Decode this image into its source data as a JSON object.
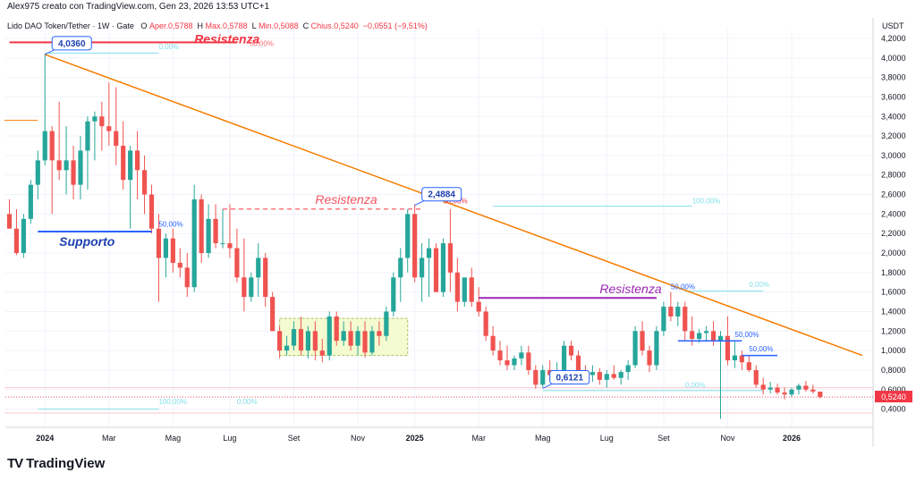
{
  "header": {
    "author_line": "Alex975 creato con TradingView.com, Gen 23, 2026 13:53 UTC+1"
  },
  "legend": {
    "symbol": "Lido DAO Token/Tether · 1W · Gate",
    "open_label": "O",
    "open": "Aper.0,5788",
    "high_label": "H",
    "high": "Max.0,5788",
    "low_label": "L",
    "low": "Min.0,5088",
    "close_label": "C",
    "close": "Chius.0,5240",
    "change": "−0,0551 (−9,51%)"
  },
  "currency": "USDT",
  "brand": {
    "logo": "TV",
    "name": "TradingView"
  },
  "colors": {
    "up": "#26a69a",
    "down": "#ef5350",
    "trend": "#f57c00",
    "support": "#2962ff",
    "resistance_red": "#f23645",
    "resistance_purple": "#9c27b0",
    "fib_cyan": "#80deea",
    "price_tag": "#f23645"
  },
  "chart_data": {
    "type": "candlestick",
    "title": "Lido DAO Token/Tether · 1W · Gate",
    "ylim": [
      0.25,
      4.3
    ],
    "y_ticks": [
      "4,2000",
      "4,0000",
      "3,8000",
      "3,6000",
      "3,4000",
      "3,2000",
      "3,0000",
      "2,8000",
      "2,6000",
      "2,4000",
      "2,2000",
      "2,0000",
      "1,8000",
      "1,6000",
      "1,4000",
      "1,2000",
      "1,0000",
      "0,8000",
      "0,6000",
      "0,4000"
    ],
    "y_tick_values": [
      4.2,
      4.0,
      3.8,
      3.6,
      3.4,
      3.2,
      3.0,
      2.8,
      2.6,
      2.4,
      2.2,
      2.0,
      1.8,
      1.6,
      1.4,
      1.2,
      1.0,
      0.8,
      0.6,
      0.4
    ],
    "x_labels": [
      {
        "label": "2024",
        "week": 5,
        "bold": true
      },
      {
        "label": "Mar",
        "week": 14
      },
      {
        "label": "Mag",
        "week": 23
      },
      {
        "label": "Lug",
        "week": 31
      },
      {
        "label": "Set",
        "week": 40
      },
      {
        "label": "Nov",
        "week": 49
      },
      {
        "label": "2025",
        "week": 57,
        "bold": true
      },
      {
        "label": "Mar",
        "week": 66
      },
      {
        "label": "Mag",
        "week": 75
      },
      {
        "label": "Lug",
        "week": 84
      },
      {
        "label": "Set",
        "week": 92
      },
      {
        "label": "Nov",
        "week": 101
      },
      {
        "label": "2026",
        "week": 110,
        "bold": true
      }
    ],
    "last_price": "0,5240",
    "last_price_value": 0.524,
    "candles": [
      [
        2.4,
        2.55,
        2.25,
        2.25
      ],
      [
        2.25,
        2.45,
        1.98,
        2.0
      ],
      [
        2.0,
        2.4,
        1.95,
        2.35
      ],
      [
        2.35,
        2.75,
        2.3,
        2.7
      ],
      [
        2.7,
        3.05,
        2.55,
        2.95
      ],
      [
        2.95,
        4.036,
        2.9,
        3.25
      ],
      [
        3.25,
        3.3,
        2.4,
        2.95
      ],
      [
        2.95,
        3.55,
        2.75,
        2.85
      ],
      [
        2.85,
        3.3,
        2.6,
        2.95
      ],
      [
        2.95,
        3.1,
        2.55,
        2.7
      ],
      [
        2.7,
        3.2,
        2.55,
        3.05
      ],
      [
        3.05,
        3.4,
        2.65,
        3.35
      ],
      [
        3.35,
        3.45,
        2.95,
        3.4
      ],
      [
        3.4,
        3.55,
        3.05,
        3.3
      ],
      [
        3.3,
        3.75,
        3.1,
        3.25
      ],
      [
        3.25,
        3.7,
        2.9,
        3.1
      ],
      [
        3.1,
        3.35,
        2.65,
        2.75
      ],
      [
        2.75,
        3.1,
        2.25,
        3.05
      ],
      [
        3.05,
        3.25,
        2.55,
        2.85
      ],
      [
        2.85,
        3.0,
        2.4,
        2.6
      ],
      [
        2.6,
        2.7,
        2.2,
        2.25
      ],
      [
        2.25,
        2.4,
        1.5,
        1.95
      ],
      [
        1.95,
        2.2,
        1.75,
        2.15
      ],
      [
        2.15,
        2.25,
        1.8,
        1.9
      ],
      [
        1.9,
        2.05,
        1.75,
        1.85
      ],
      [
        1.85,
        2.0,
        1.55,
        1.65
      ],
      [
        1.65,
        2.7,
        1.6,
        2.55
      ],
      [
        2.55,
        2.6,
        1.9,
        2.0
      ],
      [
        2.0,
        2.5,
        1.95,
        2.35
      ],
      [
        2.35,
        2.5,
        2.05,
        2.1
      ],
      [
        2.1,
        2.45,
        2.05,
        2.1
      ],
      [
        2.1,
        2.5,
        1.95,
        2.05
      ],
      [
        2.05,
        2.25,
        1.7,
        1.75
      ],
      [
        1.75,
        2.15,
        1.4,
        1.55
      ],
      [
        1.55,
        1.8,
        1.5,
        1.75
      ],
      [
        1.75,
        2.1,
        1.55,
        1.95
      ],
      [
        1.95,
        2.0,
        1.45,
        1.55
      ],
      [
        1.55,
        1.6,
        1.2,
        1.2
      ],
      [
        1.2,
        1.25,
        0.92,
        1.0
      ],
      [
        1.0,
        1.15,
        0.95,
        1.05
      ],
      [
        1.05,
        1.3,
        1.0,
        1.22
      ],
      [
        1.22,
        1.35,
        0.95,
        1.0
      ],
      [
        1.0,
        1.25,
        0.92,
        1.2
      ],
      [
        1.2,
        1.3,
        0.9,
        1.0
      ],
      [
        1.0,
        1.12,
        0.88,
        0.95
      ],
      [
        0.95,
        1.4,
        0.9,
        1.35
      ],
      [
        1.35,
        1.4,
        1.05,
        1.1
      ],
      [
        1.1,
        1.3,
        1.05,
        1.2
      ],
      [
        1.2,
        1.3,
        1.0,
        1.05
      ],
      [
        1.05,
        1.25,
        0.95,
        1.2
      ],
      [
        1.2,
        1.3,
        0.93,
        0.98
      ],
      [
        0.98,
        1.25,
        0.95,
        1.2
      ],
      [
        1.2,
        1.3,
        1.05,
        1.15
      ],
      [
        1.15,
        1.45,
        1.1,
        1.4
      ],
      [
        1.4,
        1.8,
        1.35,
        1.75
      ],
      [
        1.75,
        2.05,
        1.5,
        1.95
      ],
      [
        1.95,
        2.45,
        1.8,
        2.4
      ],
      [
        2.4,
        2.5,
        1.7,
        1.75
      ],
      [
        1.75,
        2.1,
        1.5,
        1.95
      ],
      [
        1.95,
        2.15,
        1.55,
        2.05
      ],
      [
        2.05,
        2.1,
        1.6,
        1.6
      ],
      [
        1.6,
        2.15,
        1.55,
        2.1
      ],
      [
        2.1,
        2.45,
        1.6,
        1.8
      ],
      [
        1.8,
        1.95,
        1.4,
        1.5
      ],
      [
        1.5,
        1.75,
        1.45,
        1.75
      ],
      [
        1.75,
        1.85,
        1.45,
        1.5
      ],
      [
        1.5,
        1.65,
        1.35,
        1.4
      ],
      [
        1.4,
        1.45,
        1.1,
        1.15
      ],
      [
        1.15,
        1.25,
        0.95,
        1.0
      ],
      [
        1.0,
        1.1,
        0.85,
        0.9
      ],
      [
        0.9,
        1.05,
        0.8,
        0.85
      ],
      [
        0.85,
        0.95,
        0.8,
        0.92
      ],
      [
        0.92,
        1.05,
        0.85,
        0.98
      ],
      [
        0.98,
        1.05,
        0.75,
        0.8
      ],
      [
        0.8,
        0.85,
        0.61,
        0.65
      ],
      [
        0.65,
        0.85,
        0.62,
        0.8
      ],
      [
        0.8,
        0.9,
        0.7,
        0.75
      ],
      [
        0.75,
        0.88,
        0.68,
        0.8
      ],
      [
        0.8,
        1.1,
        0.78,
        1.05
      ],
      [
        1.05,
        1.1,
        0.9,
        0.95
      ],
      [
        0.95,
        1.0,
        0.78,
        0.8
      ],
      [
        0.8,
        0.85,
        0.7,
        0.75
      ],
      [
        0.75,
        0.85,
        0.68,
        0.78
      ],
      [
        0.78,
        0.82,
        0.65,
        0.7
      ],
      [
        0.7,
        0.8,
        0.62,
        0.76
      ],
      [
        0.76,
        0.85,
        0.7,
        0.72
      ],
      [
        0.72,
        0.8,
        0.65,
        0.78
      ],
      [
        0.78,
        0.9,
        0.7,
        0.85
      ],
      [
        0.85,
        1.25,
        0.82,
        1.2
      ],
      [
        1.2,
        1.3,
        0.95,
        1.0
      ],
      [
        1.0,
        1.05,
        0.78,
        0.85
      ],
      [
        0.85,
        1.25,
        0.8,
        1.2
      ],
      [
        1.2,
        1.5,
        1.15,
        1.45
      ],
      [
        1.45,
        1.6,
        1.3,
        1.35
      ],
      [
        1.35,
        1.5,
        1.25,
        1.45
      ],
      [
        1.45,
        1.5,
        1.1,
        1.2
      ],
      [
        1.2,
        1.35,
        1.05,
        1.12
      ],
      [
        1.12,
        1.22,
        1.08,
        1.18
      ],
      [
        1.18,
        1.25,
        1.1,
        1.2
      ],
      [
        1.2,
        1.3,
        1.05,
        1.1
      ],
      [
        1.1,
        1.2,
        0.3,
        1.15
      ],
      [
        1.15,
        1.35,
        0.85,
        0.9
      ],
      [
        0.9,
        1.1,
        0.82,
        0.95
      ],
      [
        0.95,
        1.0,
        0.8,
        0.88
      ],
      [
        0.88,
        0.95,
        0.78,
        0.8
      ],
      [
        0.8,
        0.85,
        0.62,
        0.65
      ],
      [
        0.65,
        0.72,
        0.55,
        0.6
      ],
      [
        0.6,
        0.68,
        0.56,
        0.62
      ],
      [
        0.62,
        0.66,
        0.55,
        0.57
      ],
      [
        0.57,
        0.62,
        0.5,
        0.55
      ],
      [
        0.55,
        0.62,
        0.52,
        0.6
      ],
      [
        0.6,
        0.66,
        0.55,
        0.64
      ],
      [
        0.64,
        0.69,
        0.58,
        0.6
      ],
      [
        0.6,
        0.65,
        0.56,
        0.58
      ],
      [
        0.5788,
        0.5788,
        0.5088,
        0.524
      ]
    ]
  },
  "annotations": {
    "price_labels": [
      {
        "text": "4,0360",
        "week": 5,
        "price": 4.036
      },
      {
        "text": "2,4884",
        "week": 57,
        "price": 2.4884
      },
      {
        "text": "0,6121",
        "week": 75,
        "price": 0.6121
      }
    ],
    "resistance_top": {
      "text": "Resistenza",
      "from": 0,
      "to": 32,
      "price": 4.16
    },
    "resistance_mid": {
      "text": "Resistenza",
      "from": 30,
      "to": 58,
      "price": 2.45
    },
    "resistance_right": {
      "text": "Resistenza",
      "from": 66,
      "to": 91,
      "price": 1.54
    },
    "support": {
      "text": "Supporto",
      "from": 4,
      "to": 20,
      "price": 2.22
    },
    "fib_labels": [
      {
        "text": "0,00%",
        "week": 21,
        "price": 4.09,
        "color": "#80deea"
      },
      {
        "text": "50,00%",
        "week": 21,
        "price": 2.27,
        "color": "#2962ff"
      },
      {
        "text": "100,00%",
        "week": 21,
        "price": 0.45,
        "color": "#80deea"
      },
      {
        "text": "0,00%",
        "week": 32,
        "price": 0.45,
        "color": "#80deea"
      },
      {
        "text": "50,00%",
        "week": 61,
        "price": 2.51,
        "color": "#f23645"
      },
      {
        "text": "100,00%",
        "week": 96,
        "price": 2.51,
        "color": "#80deea"
      },
      {
        "text": "0,00%",
        "week": 95,
        "price": 0.62,
        "color": "#80deea"
      },
      {
        "text": "50,00%",
        "week": 93,
        "price": 1.63,
        "color": "#2962ff"
      },
      {
        "text": "0,00%",
        "week": 104,
        "price": 1.65,
        "color": "#80deea"
      },
      {
        "text": "50,00%",
        "week": 102,
        "price": 1.14,
        "color": "#2962ff"
      },
      {
        "text": "50,00%",
        "week": 104,
        "price": 0.99,
        "color": "#2962ff"
      }
    ],
    "top_resistance_suffix": "50,00%"
  }
}
